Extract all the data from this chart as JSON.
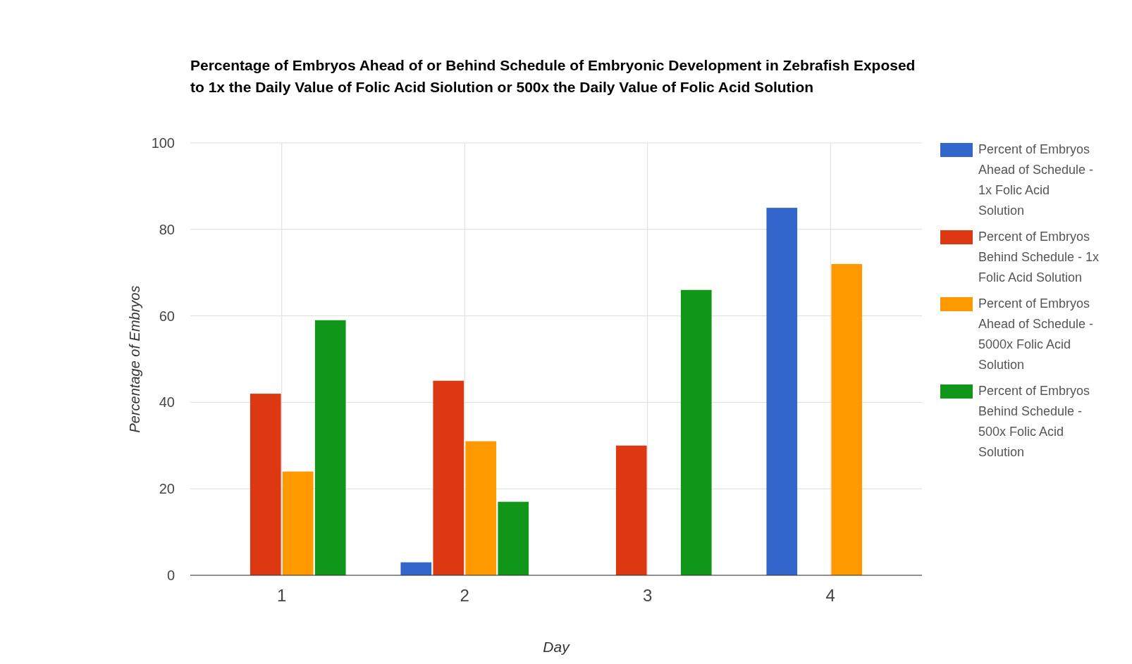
{
  "chart_data": {
    "type": "bar",
    "title": "Percentage of Embryos Ahead of or Behind Schedule of Embryonic Development in Zebrafish Exposed to 1x the Daily Value of Folic Acid Siolution or 500x the Daily Value of Folic Acid Solution",
    "xlabel": "Day",
    "ylabel": "Percentage of Embryos",
    "categories": [
      "1",
      "2",
      "3",
      "4"
    ],
    "series": [
      {
        "name": "Percent of Embryos Ahead of Schedule - 1x Folic Acid Solution",
        "color": "#3366cc",
        "values": [
          0,
          3,
          0,
          85
        ]
      },
      {
        "name": "Percent of Embryos Behind Schedule - 1x Folic Acid Solution",
        "color": "#dc3912",
        "values": [
          42,
          45,
          30,
          0
        ]
      },
      {
        "name": "Percent of Embryos Ahead of Schedule - 5000x Folic Acid Solution",
        "color": "#ff9900",
        "values": [
          24,
          31,
          0,
          72
        ]
      },
      {
        "name": "Percent of Embryos Behind Schedule - 500x Folic Acid Solution",
        "color": "#109618",
        "values": [
          59,
          17,
          66,
          0
        ]
      }
    ],
    "ylim": [
      0,
      100
    ],
    "yticks": [
      0,
      20,
      40,
      60,
      80,
      100
    ],
    "grid": true,
    "legend": "right"
  }
}
